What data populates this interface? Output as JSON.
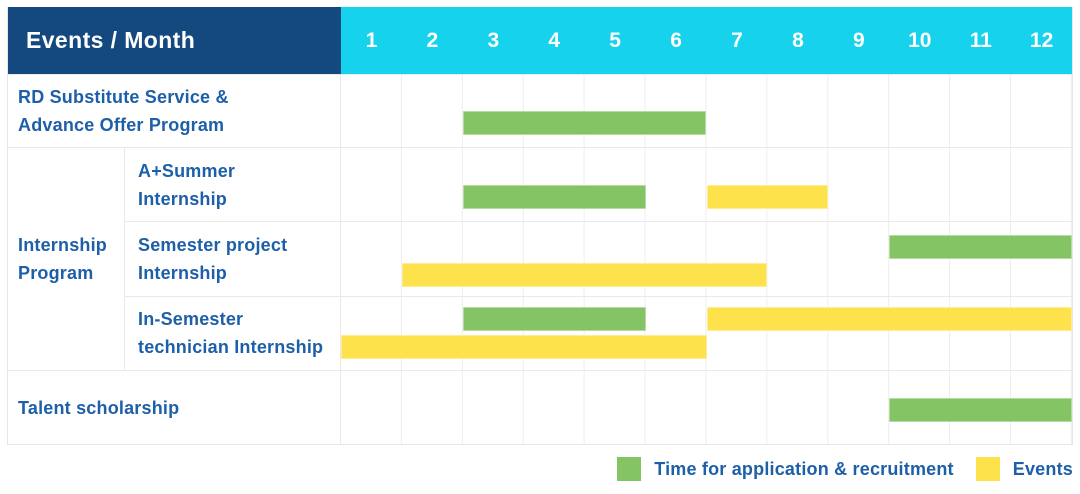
{
  "colors": {
    "header_bg": "#14497F",
    "months_bg": "#16D2ED",
    "recruitment": "#85C464",
    "event": "#FEE24B",
    "label_text": "#1D5FA8",
    "grid_line": "#EDEDED"
  },
  "table": {
    "header": {
      "label": "Events / Month",
      "months": [
        "1",
        "2",
        "3",
        "4",
        "5",
        "6",
        "7",
        "8",
        "9",
        "10",
        "11",
        "12"
      ]
    },
    "body": [
      {
        "kind": "row",
        "id": "rd-substitute-service",
        "label_lines": [
          "RD Substitute Service &",
          "Advance Offer Program"
        ],
        "bars": [
          {
            "type": "recruitment",
            "start_month": 3,
            "end_month": 6,
            "line": 0
          }
        ]
      },
      {
        "kind": "group",
        "id": "internship-program",
        "label_lines": [
          "Internship",
          "Program"
        ],
        "rows": [
          {
            "id": "a-plus-summer-internship",
            "label_lines": [
              "A+Summer",
              "Internship"
            ],
            "bars": [
              {
                "type": "recruitment",
                "start_month": 3,
                "end_month": 5,
                "line": 0
              },
              {
                "type": "event",
                "start_month": 7,
                "end_month": 8,
                "line": 0
              }
            ]
          },
          {
            "id": "semester-project-internship",
            "label_lines": [
              "Semester project",
              "Internship"
            ],
            "bars": [
              {
                "type": "recruitment",
                "start_month": 10,
                "end_month": 12,
                "line": 0
              },
              {
                "type": "event",
                "start_month": 2,
                "end_month": 7,
                "line": 1
              }
            ]
          },
          {
            "id": "in-semester-technician-internship",
            "label_lines": [
              "In-Semester",
              "technician Internship"
            ],
            "bars": [
              {
                "type": "recruitment",
                "start_month": 3,
                "end_month": 5,
                "line": 0
              },
              {
                "type": "event",
                "start_month": 7,
                "end_month": 12,
                "line": 0
              },
              {
                "type": "event",
                "start_month": 1,
                "end_month": 6,
                "line": 1
              }
            ]
          }
        ]
      },
      {
        "kind": "row",
        "id": "talent-scholarship",
        "label_lines": [
          "Talent scholarship"
        ],
        "bars": [
          {
            "type": "recruitment",
            "start_month": 10,
            "end_month": 12,
            "line": 0
          }
        ]
      }
    ]
  },
  "legend": {
    "items": [
      {
        "label": "Time for application & recruitment",
        "color_key": "recruitment"
      },
      {
        "label": "Events",
        "color_key": "event"
      }
    ]
  },
  "chart_data": {
    "type": "table",
    "subtype": "gantt",
    "title": "Events / Month",
    "x_axis": {
      "label": "Month",
      "ticks": [
        1,
        2,
        3,
        4,
        5,
        6,
        7,
        8,
        9,
        10,
        11,
        12
      ],
      "range": [
        1,
        12
      ]
    },
    "grid": true,
    "legend_position": "bottom-right",
    "rows": [
      "RD Substitute Service & Advance Offer Program",
      "Internship Program / A+Summer Internship",
      "Internship Program / Semester project Internship",
      "Internship Program / In-Semester technician Internship",
      "Talent scholarship"
    ],
    "series": [
      {
        "name": "Time for application & recruitment",
        "color": "#85C464",
        "spans": [
          {
            "row": "RD Substitute Service & Advance Offer Program",
            "start_month": 3,
            "end_month": 6
          },
          {
            "row": "Internship Program / A+Summer Internship",
            "start_month": 3,
            "end_month": 5
          },
          {
            "row": "Internship Program / Semester project Internship",
            "start_month": 10,
            "end_month": 12
          },
          {
            "row": "Internship Program / In-Semester technician Internship",
            "start_month": 3,
            "end_month": 5
          },
          {
            "row": "Talent scholarship",
            "start_month": 10,
            "end_month": 12
          }
        ]
      },
      {
        "name": "Events",
        "color": "#FEE24B",
        "spans": [
          {
            "row": "Internship Program / A+Summer Internship",
            "start_month": 7,
            "end_month": 8
          },
          {
            "row": "Internship Program / Semester project Internship",
            "start_month": 2,
            "end_month": 7
          },
          {
            "row": "Internship Program / In-Semester technician Internship",
            "start_month": 7,
            "end_month": 12
          },
          {
            "row": "Internship Program / In-Semester technician Internship",
            "start_month": 1,
            "end_month": 6
          }
        ]
      }
    ]
  }
}
